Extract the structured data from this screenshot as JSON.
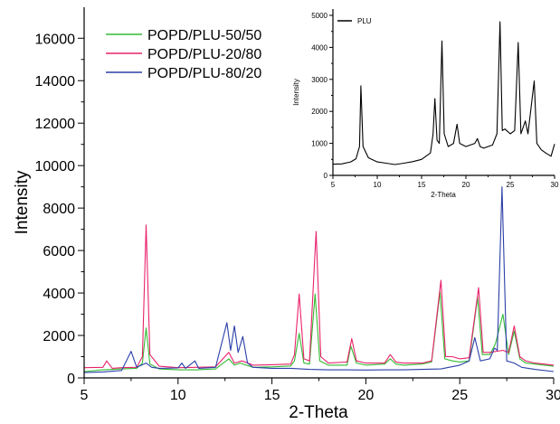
{
  "chart_data": [
    {
      "type": "line",
      "xlabel": "2-Theta",
      "ylabel": "Intensity",
      "xlim": [
        5,
        30
      ],
      "ylim": [
        0,
        17000
      ],
      "x_ticks": [
        "5",
        "10",
        "15",
        "20",
        "25",
        "30"
      ],
      "y_ticks": [
        "0",
        "2000",
        "4000",
        "6000",
        "8000",
        "10000",
        "12000",
        "14000",
        "16000"
      ],
      "legend_position": "top-left",
      "series": [
        {
          "name": "POPD/PLU-50/50",
          "color": "#33bb33",
          "points": [
            [
              5,
              300
            ],
            [
              6,
              380
            ],
            [
              7,
              420
            ],
            [
              7.8,
              450
            ],
            [
              8.1,
              700
            ],
            [
              8.3,
              2350
            ],
            [
              8.5,
              650
            ],
            [
              9,
              420
            ],
            [
              10,
              380
            ],
            [
              11,
              380
            ],
            [
              12,
              420
            ],
            [
              12.7,
              900
            ],
            [
              13,
              600
            ],
            [
              13.3,
              700
            ],
            [
              14,
              500
            ],
            [
              15,
              520
            ],
            [
              16,
              560
            ],
            [
              16.2,
              800
            ],
            [
              16.45,
              2100
            ],
            [
              16.7,
              700
            ],
            [
              17,
              650
            ],
            [
              17.3,
              3950
            ],
            [
              17.55,
              800
            ],
            [
              18,
              600
            ],
            [
              19,
              600
            ],
            [
              19.2,
              1500
            ],
            [
              19.5,
              700
            ],
            [
              20,
              600
            ],
            [
              21,
              650
            ],
            [
              21.3,
              900
            ],
            [
              21.6,
              650
            ],
            [
              22,
              600
            ],
            [
              23,
              650
            ],
            [
              23.5,
              750
            ],
            [
              23.95,
              4050
            ],
            [
              24.2,
              900
            ],
            [
              24.6,
              800
            ],
            [
              25,
              750
            ],
            [
              25.5,
              800
            ],
            [
              25.95,
              3800
            ],
            [
              26.2,
              1100
            ],
            [
              26.6,
              1100
            ],
            [
              26.9,
              1600
            ],
            [
              27.3,
              3000
            ],
            [
              27.6,
              1100
            ],
            [
              27.9,
              2200
            ],
            [
              28.2,
              900
            ],
            [
              28.5,
              700
            ],
            [
              29,
              650
            ],
            [
              29.5,
              600
            ],
            [
              30,
              550
            ]
          ]
        },
        {
          "name": "POPD/PLU-20/80",
          "color": "#e8236b",
          "points": [
            [
              5,
              480
            ],
            [
              6,
              500
            ],
            [
              6.2,
              800
            ],
            [
              6.5,
              450
            ],
            [
              7,
              480
            ],
            [
              7.8,
              500
            ],
            [
              8.1,
              1000
            ],
            [
              8.3,
              7200
            ],
            [
              8.5,
              1100
            ],
            [
              9,
              550
            ],
            [
              10,
              480
            ],
            [
              11,
              500
            ],
            [
              12,
              520
            ],
            [
              12.7,
              1200
            ],
            [
              13,
              700
            ],
            [
              13.4,
              800
            ],
            [
              14,
              600
            ],
            [
              15,
              620
            ],
            [
              16,
              650
            ],
            [
              16.2,
              1100
            ],
            [
              16.45,
              3950
            ],
            [
              16.7,
              900
            ],
            [
              17,
              800
            ],
            [
              17.35,
              6900
            ],
            [
              17.6,
              1000
            ],
            [
              18,
              700
            ],
            [
              19,
              750
            ],
            [
              19.25,
              1850
            ],
            [
              19.5,
              800
            ],
            [
              20,
              700
            ],
            [
              21,
              700
            ],
            [
              21.3,
              1100
            ],
            [
              21.6,
              750
            ],
            [
              22,
              700
            ],
            [
              23,
              700
            ],
            [
              23.5,
              800
            ],
            [
              24,
              4600
            ],
            [
              24.25,
              1000
            ],
            [
              24.6,
              1000
            ],
            [
              25,
              900
            ],
            [
              25.5,
              950
            ],
            [
              26,
              4250
            ],
            [
              26.25,
              1200
            ],
            [
              26.6,
              1200
            ],
            [
              27.3,
              1300
            ],
            [
              27.6,
              1200
            ],
            [
              27.9,
              2450
            ],
            [
              28.2,
              1000
            ],
            [
              28.5,
              800
            ],
            [
              29,
              700
            ],
            [
              29.5,
              650
            ],
            [
              30,
              600
            ]
          ]
        },
        {
          "name": "POPD/PLU-80/20",
          "color": "#2b3fa8",
          "points": [
            [
              5,
              250
            ],
            [
              6,
              280
            ],
            [
              7,
              350
            ],
            [
              7.5,
              1250
            ],
            [
              7.8,
              500
            ],
            [
              8.3,
              700
            ],
            [
              8.6,
              500
            ],
            [
              9,
              450
            ],
            [
              10,
              470
            ],
            [
              10.2,
              700
            ],
            [
              10.4,
              450
            ],
            [
              10.9,
              800
            ],
            [
              11.1,
              450
            ],
            [
              12,
              500
            ],
            [
              12.6,
              2600
            ],
            [
              12.8,
              1300
            ],
            [
              13,
              2450
            ],
            [
              13.2,
              1200
            ],
            [
              13.45,
              1950
            ],
            [
              13.7,
              700
            ],
            [
              14,
              500
            ],
            [
              15,
              450
            ],
            [
              16,
              450
            ],
            [
              17,
              400
            ],
            [
              18,
              380
            ],
            [
              19,
              380
            ],
            [
              20,
              370
            ],
            [
              21,
              380
            ],
            [
              22,
              380
            ],
            [
              23,
              400
            ],
            [
              24,
              420
            ],
            [
              25,
              600
            ],
            [
              25.5,
              800
            ],
            [
              25.8,
              1900
            ],
            [
              26.1,
              800
            ],
            [
              26.6,
              900
            ],
            [
              26.85,
              1400
            ],
            [
              27,
              1300
            ],
            [
              27.25,
              9000
            ],
            [
              27.5,
              800
            ],
            [
              27.9,
              700
            ],
            [
              28.3,
              500
            ],
            [
              29,
              400
            ],
            [
              30,
              300
            ]
          ]
        }
      ]
    },
    {
      "type": "line",
      "xlabel": "2-Theta",
      "ylabel": "Intensity",
      "xlim": [
        5,
        30
      ],
      "ylim": [
        0,
        5000
      ],
      "x_ticks": [
        "5",
        "10",
        "15",
        "20",
        "25",
        "30"
      ],
      "y_ticks": [
        "0",
        "1000",
        "2000",
        "3000",
        "4000",
        "5000"
      ],
      "legend_position": "top-left",
      "series": [
        {
          "name": "PLU",
          "color": "#000000",
          "points": [
            [
              5,
              350
            ],
            [
              6,
              360
            ],
            [
              7,
              420
            ],
            [
              7.6,
              520
            ],
            [
              8,
              900
            ],
            [
              8.15,
              2800
            ],
            [
              8.4,
              900
            ],
            [
              9,
              550
            ],
            [
              10,
              420
            ],
            [
              11,
              380
            ],
            [
              12,
              340
            ],
            [
              13,
              380
            ],
            [
              14,
              430
            ],
            [
              15,
              500
            ],
            [
              16,
              700
            ],
            [
              16.3,
              1300
            ],
            [
              16.5,
              2400
            ],
            [
              16.75,
              1100
            ],
            [
              17,
              1000
            ],
            [
              17.3,
              4200
            ],
            [
              17.55,
              1300
            ],
            [
              18,
              900
            ],
            [
              18.6,
              1000
            ],
            [
              19,
              1600
            ],
            [
              19.3,
              1000
            ],
            [
              20,
              900
            ],
            [
              21,
              1000
            ],
            [
              21.3,
              1150
            ],
            [
              21.6,
              900
            ],
            [
              22,
              850
            ],
            [
              23,
              950
            ],
            [
              23.5,
              1300
            ],
            [
              23.85,
              4800
            ],
            [
              24.1,
              1400
            ],
            [
              24.4,
              1450
            ],
            [
              25,
              1300
            ],
            [
              25.5,
              1400
            ],
            [
              25.9,
              4150
            ],
            [
              26.2,
              1300
            ],
            [
              26.7,
              1700
            ],
            [
              27,
              1300
            ],
            [
              27.7,
              2950
            ],
            [
              28,
              1000
            ],
            [
              28.5,
              800
            ],
            [
              29,
              700
            ],
            [
              29.6,
              600
            ],
            [
              30,
              980
            ]
          ]
        }
      ]
    }
  ]
}
